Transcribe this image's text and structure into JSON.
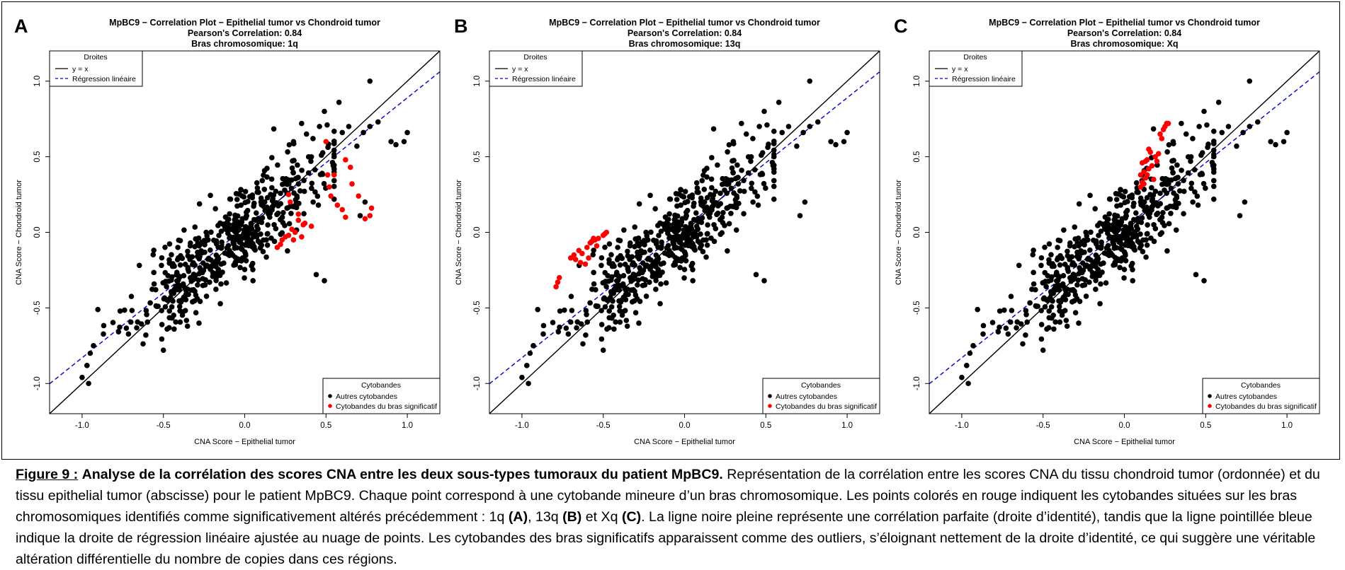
{
  "figure": {
    "caption": {
      "label": "Figure 9 :",
      "title": "Analyse de la corrélation des scores CNA entre les deux sous-types tumoraux du patient MpBC9.",
      "body_1": "Représentation de la corrélation entre les scores CNA du tissu chondroid tumor (ordonnée) et du tissu epithelial tumor (abscisse) pour le patient MpBC9. Chaque point correspond à une cytobande mineure d’un bras chromosomique. Les points colorés en rouge indiquent les cytobandes situées sur les bras chromosomiques identifiés comme significativement altérés précédemment : 1q ",
      "ref_a": "(A)",
      "sep_1": ", 13q ",
      "ref_b": "(B)",
      "sep_2": " et Xq ",
      "ref_c": "(C)",
      "body_2": ". La ligne noire pleine représente une corrélation parfaite (droite d’identité), tandis que la ligne pointillée bleue indique la droite de régression linéaire ajustée au nuage de points. Les cytobandes des bras significatifs apparaissent comme des outliers, s’éloignant nettement de la droite d’identité, ce qui suggère une véritable altération différentielle du nombre de copies dans ces régions."
    }
  },
  "colors": {
    "points_other": "#000000",
    "points_highlight": "#ff0000",
    "identity_line": "#000000",
    "regression_line": "#0000cc"
  },
  "chart_data": [
    {
      "type": "scatter",
      "panel_label": "A",
      "title": "MpBC9 − Correlation Plot − Epithelial tumor vs Chondroid tumor",
      "subtitle_1": "Pearson's Correlation: 0.84",
      "subtitle_2": "Bras chromosomique: 1q",
      "xlabel": "CNA Score − Epithelial tumor",
      "ylabel": "CNA Score − Chondroid tumor",
      "xlim": [
        -1.2,
        1.2
      ],
      "ylim": [
        -1.2,
        1.2
      ],
      "xticks": [
        "-1.0",
        "-0.5",
        "0.0",
        "0.5",
        "1.0"
      ],
      "yticks": [
        "-1.0",
        "-0.5",
        "0.0",
        "0.5",
        "1.0"
      ],
      "lines_legend": {
        "title": "Droites",
        "entries": [
          "y = x",
          "Régression linéaire"
        ],
        "placement": "top-left"
      },
      "points_legend": {
        "title": "Cytobandes",
        "entries": [
          "Autres cytobandes",
          "Cytobandes du bras significatif"
        ],
        "placement": "bottom-right"
      },
      "regression": {
        "slope": 0.86,
        "intercept": 0.03
      },
      "series": [
        {
          "name": "Cytobandes du bras significatif",
          "color": "#ff0000",
          "points": [
            [
              0.22,
              -0.08
            ],
            [
              0.2,
              -0.1
            ],
            [
              0.23,
              -0.05
            ],
            [
              0.25,
              -0.03
            ],
            [
              0.27,
              -0.02
            ],
            [
              0.3,
              -0.05
            ],
            [
              0.29,
              0.02
            ],
            [
              0.31,
              0.0
            ],
            [
              0.33,
              0.08
            ],
            [
              0.35,
              -0.03
            ],
            [
              0.33,
              0.12
            ],
            [
              0.36,
              0.05
            ],
            [
              0.37,
              0.06
            ],
            [
              0.41,
              0.04
            ],
            [
              0.27,
              0.25
            ],
            [
              0.28,
              0.2
            ],
            [
              0.5,
              0.6
            ],
            [
              0.51,
              0.38
            ],
            [
              0.52,
              0.3
            ],
            [
              0.53,
              0.24
            ],
            [
              0.55,
              0.38
            ],
            [
              0.57,
              0.18
            ],
            [
              0.6,
              0.15
            ],
            [
              0.62,
              0.48
            ],
            [
              0.62,
              0.1
            ],
            [
              0.65,
              0.43
            ],
            [
              0.66,
              0.32
            ],
            [
              0.7,
              0.24
            ],
            [
              0.74,
              0.09
            ],
            [
              0.77,
              0.11
            ],
            [
              0.78,
              0.16
            ]
          ]
        },
        {
          "name": "Autres cytobandes",
          "color": "#000000",
          "points": []
        }
      ]
    },
    {
      "type": "scatter",
      "panel_label": "B",
      "title": "MpBC9 − Correlation Plot − Epithelial tumor vs Chondroid tumor",
      "subtitle_1": "Pearson's Correlation: 0.84",
      "subtitle_2": "Bras chromosomique: 13q",
      "xlabel": "CNA Score − Epithelial tumor",
      "ylabel": "CNA Score − Chondroid tumor",
      "xlim": [
        -1.2,
        1.2
      ],
      "ylim": [
        -1.2,
        1.2
      ],
      "xticks": [
        "-1.0",
        "-0.5",
        "0.0",
        "0.5",
        "1.0"
      ],
      "yticks": [
        "-1.0",
        "-0.5",
        "0.0",
        "0.5",
        "1.0"
      ],
      "lines_legend": {
        "title": "Droites",
        "entries": [
          "y = x",
          "Régression linéaire"
        ],
        "placement": "top-left"
      },
      "points_legend": {
        "title": "Cytobandes",
        "entries": [
          "Autres cytobandes",
          "Cytobandes du bras significatif"
        ],
        "placement": "bottom-right"
      },
      "regression": {
        "slope": 0.86,
        "intercept": 0.03
      },
      "series": [
        {
          "name": "Cytobandes du bras significatif",
          "color": "#ff0000",
          "points": [
            [
              -0.79,
              -0.36
            ],
            [
              -0.78,
              -0.33
            ],
            [
              -0.77,
              -0.3
            ],
            [
              -0.7,
              -0.17
            ],
            [
              -0.68,
              -0.15
            ],
            [
              -0.67,
              -0.18
            ],
            [
              -0.65,
              -0.12
            ],
            [
              -0.64,
              -0.2
            ],
            [
              -0.63,
              -0.14
            ],
            [
              -0.61,
              -0.21
            ],
            [
              -0.6,
              -0.1
            ],
            [
              -0.59,
              -0.17
            ],
            [
              -0.58,
              -0.07
            ],
            [
              -0.57,
              -0.06
            ],
            [
              -0.56,
              -0.04
            ],
            [
              -0.55,
              -0.05
            ],
            [
              -0.54,
              -0.09
            ],
            [
              -0.53,
              -0.04
            ],
            [
              -0.49,
              -0.01
            ],
            [
              -0.48,
              0.0
            ],
            [
              -0.5,
              -0.02
            ]
          ]
        },
        {
          "name": "Autres cytobandes",
          "color": "#000000",
          "points": []
        }
      ]
    },
    {
      "type": "scatter",
      "panel_label": "C",
      "title": "MpBC9 − Correlation Plot − Epithelial tumor vs Chondroid tumor",
      "subtitle_1": "Pearson's Correlation: 0.84",
      "subtitle_2": "Bras chromosomique: Xq",
      "xlabel": "CNA Score − Epithelial tumor",
      "ylabel": "CNA Score − Chondroid tumor",
      "xlim": [
        -1.2,
        1.2
      ],
      "ylim": [
        -1.2,
        1.2
      ],
      "xticks": [
        "-1.0",
        "-0.5",
        "0.0",
        "0.5",
        "1.0"
      ],
      "yticks": [
        "-1.0",
        "-0.5",
        "0.0",
        "0.5",
        "1.0"
      ],
      "lines_legend": {
        "title": "Droites",
        "entries": [
          "y = x",
          "Régression linéaire"
        ],
        "placement": "top-left"
      },
      "points_legend": {
        "title": "Cytobandes",
        "entries": [
          "Autres cytobandes",
          "Cytobandes du bras significatif"
        ],
        "placement": "bottom-right"
      },
      "regression": {
        "slope": 0.86,
        "intercept": 0.03
      },
      "series": [
        {
          "name": "Cytobandes du bras significatif",
          "color": "#ff0000",
          "points": [
            [
              0.1,
              0.3
            ],
            [
              0.1,
              0.38
            ],
            [
              0.11,
              0.46
            ],
            [
              0.11,
              0.33
            ],
            [
              0.12,
              0.32
            ],
            [
              0.12,
              0.4
            ],
            [
              0.13,
              0.36
            ],
            [
              0.13,
              0.47
            ],
            [
              0.14,
              0.48
            ],
            [
              0.14,
              0.38
            ],
            [
              0.15,
              0.55
            ],
            [
              0.15,
              0.42
            ],
            [
              0.16,
              0.53
            ],
            [
              0.17,
              0.44
            ],
            [
              0.18,
              0.35
            ],
            [
              0.19,
              0.5
            ],
            [
              0.2,
              0.47
            ],
            [
              0.21,
              0.52
            ],
            [
              0.22,
              0.65
            ],
            [
              0.23,
              0.62
            ],
            [
              0.24,
              0.68
            ],
            [
              0.25,
              0.7
            ],
            [
              0.26,
              0.72
            ],
            [
              0.27,
              0.72
            ]
          ]
        },
        {
          "name": "Autres cytobandes",
          "color": "#000000",
          "points": []
        }
      ]
    }
  ]
}
